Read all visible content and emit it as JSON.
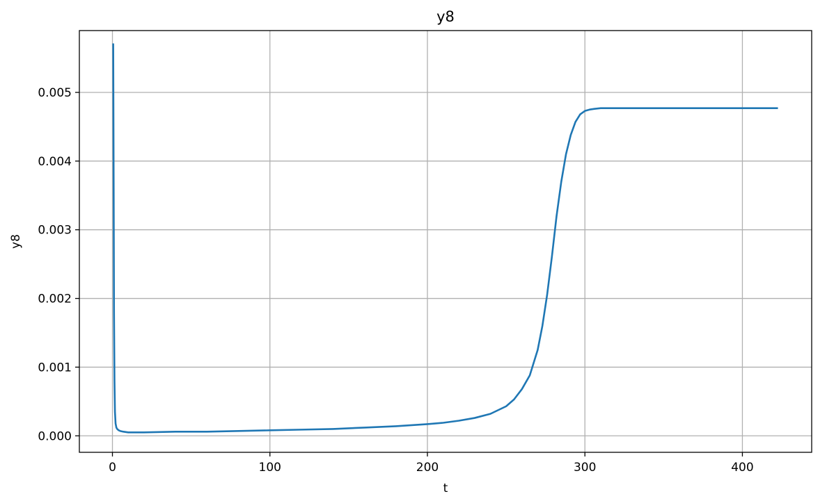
{
  "chart_data": {
    "type": "line",
    "title": "y8",
    "xlabel": "t",
    "ylabel": "y8",
    "xlim": [
      -21,
      444
    ],
    "ylim": [
      -0.00024,
      0.0059
    ],
    "grid": true,
    "line_color": "#1f77b4",
    "grid_color": "#b0b0b0",
    "xticks": [
      0,
      100,
      200,
      300,
      400
    ],
    "xtick_labels": [
      "0",
      "100",
      "200",
      "300",
      "400"
    ],
    "yticks": [
      0.0,
      0.001,
      0.002,
      0.003,
      0.004,
      0.005
    ],
    "ytick_labels": [
      "0.000",
      "0.001",
      "0.002",
      "0.003",
      "0.004",
      "0.005"
    ],
    "series": [
      {
        "x": [
          0.5,
          0.8,
          1.0,
          1.3,
          1.6,
          2.0,
          2.5,
          3,
          4,
          5,
          7,
          10,
          20,
          40,
          60,
          80,
          100,
          120,
          140,
          160,
          180,
          200,
          210,
          220,
          230,
          240,
          250,
          255,
          260,
          265,
          270,
          273,
          276,
          279,
          282,
          285,
          288,
          291,
          294,
          297,
          300,
          303,
          306,
          310,
          315,
          320,
          340,
          380,
          422
        ],
        "y": [
          0.0057,
          0.0035,
          0.0018,
          0.0008,
          0.00035,
          0.00018,
          0.00012,
          0.0001,
          8e-05,
          7e-05,
          6e-05,
          5e-05,
          5e-05,
          6e-05,
          6e-05,
          7e-05,
          8e-05,
          9e-05,
          0.0001,
          0.00012,
          0.00014,
          0.00017,
          0.00019,
          0.00022,
          0.00026,
          0.00032,
          0.00043,
          0.00053,
          0.00068,
          0.00088,
          0.00125,
          0.0016,
          0.00205,
          0.0026,
          0.0032,
          0.0037,
          0.0041,
          0.00438,
          0.00457,
          0.00468,
          0.00473,
          0.00475,
          0.00476,
          0.00477,
          0.00477,
          0.00477,
          0.00477,
          0.00477,
          0.00477
        ]
      }
    ]
  }
}
